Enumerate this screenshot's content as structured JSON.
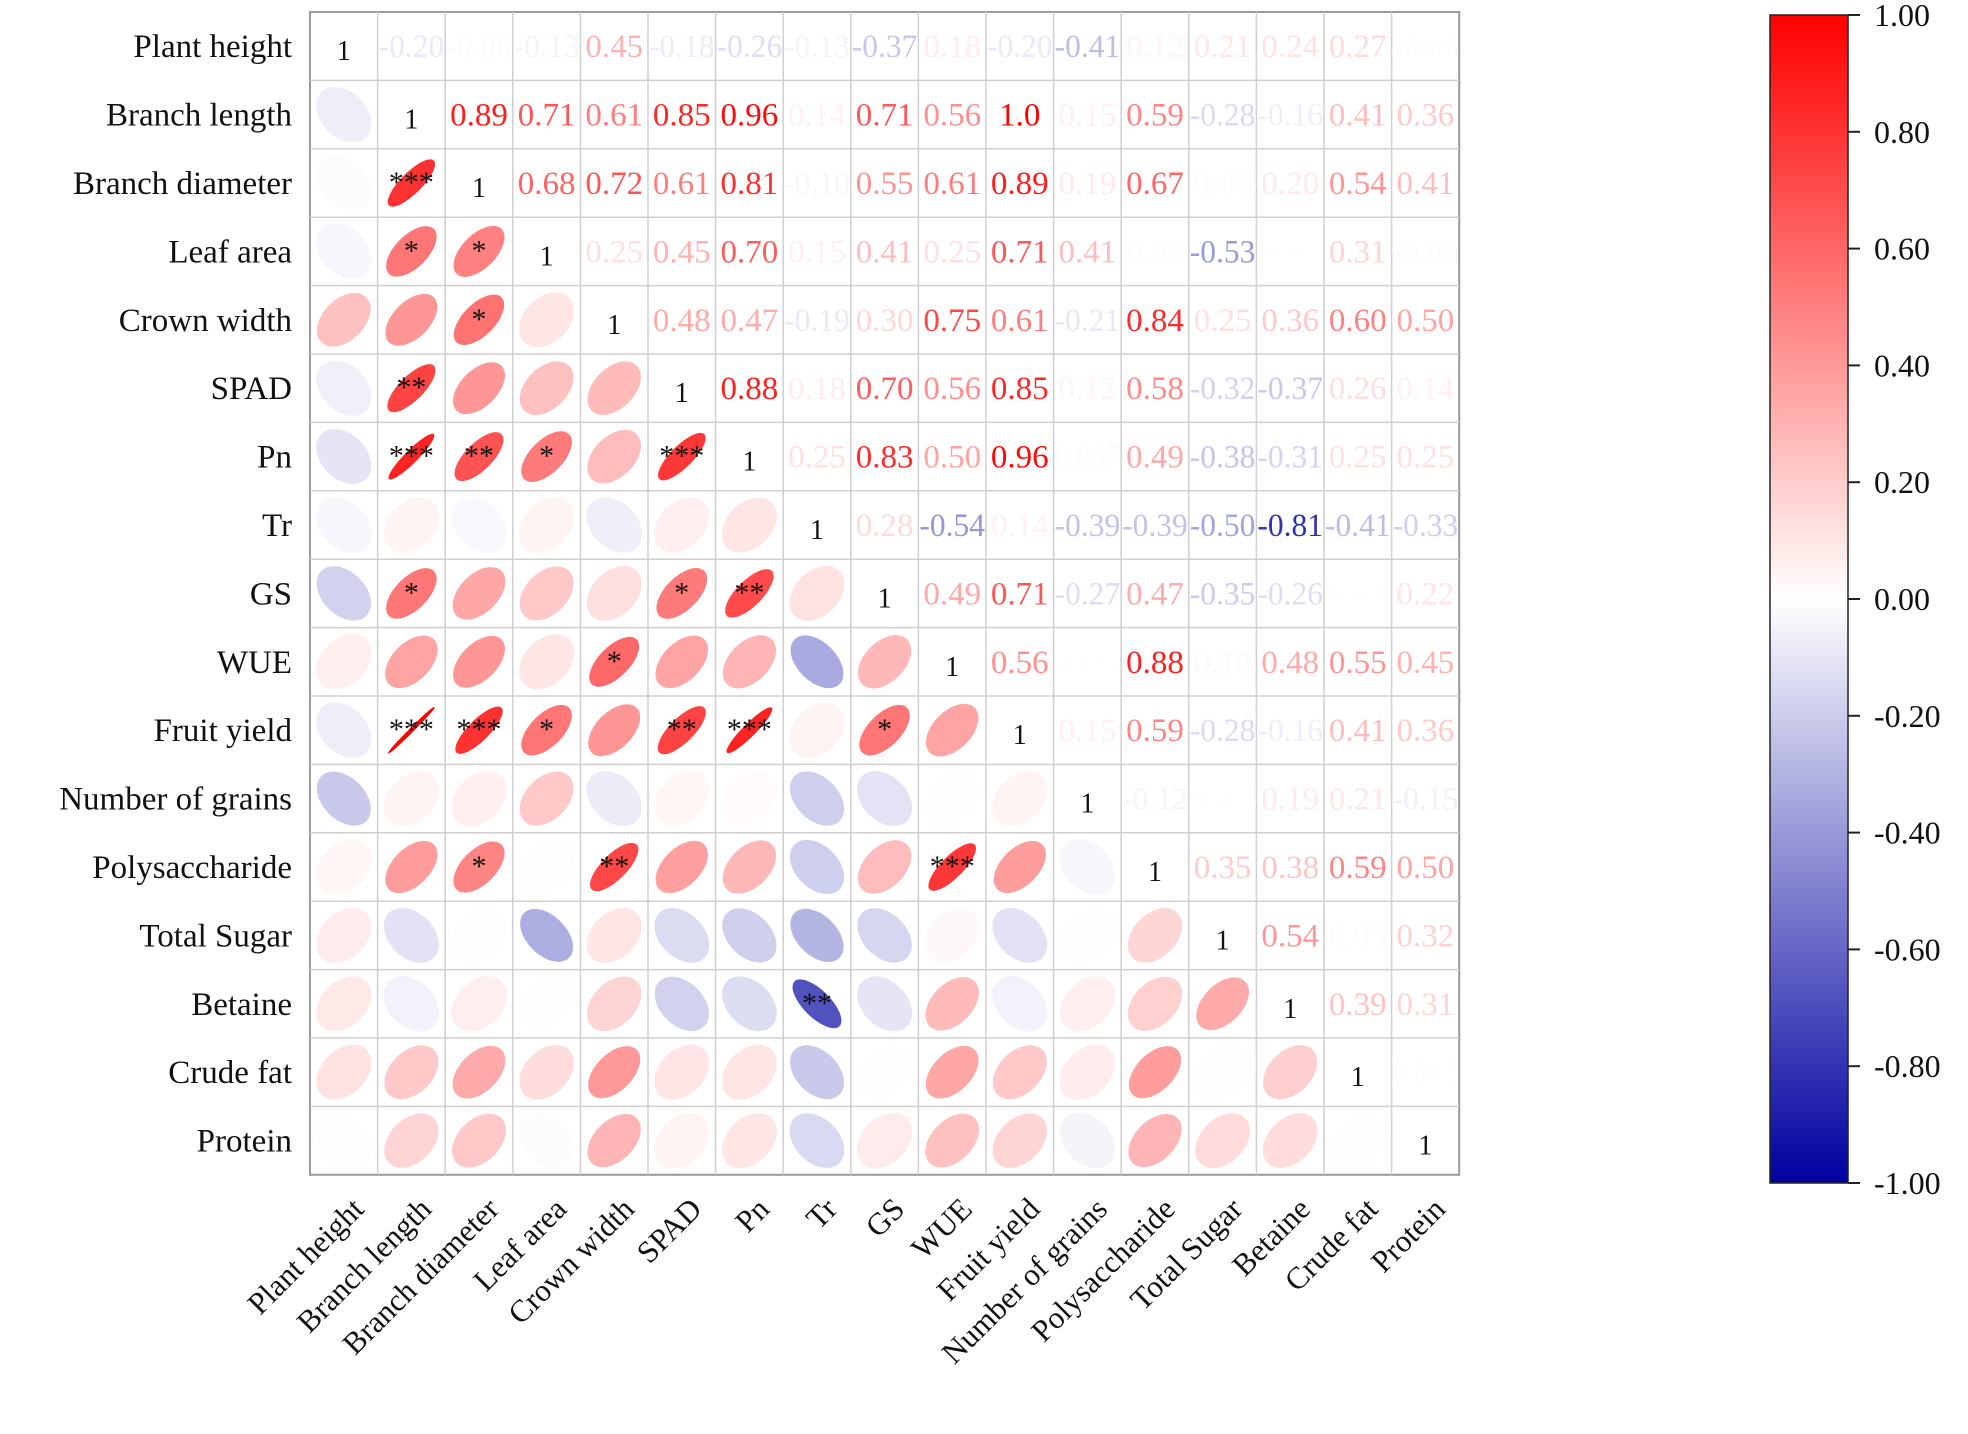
{
  "chart_data": {
    "type": "heatmap",
    "variables": [
      "Plant height",
      "Branch length",
      "Branch diameter",
      "Leaf area",
      "Crown width",
      "SPAD",
      "Pn",
      "Tr",
      "GS",
      "WUE",
      "Fruit yield",
      "Number of grains",
      "Polysaccharide",
      "Total Sugar",
      "Betaine",
      "Crude fat",
      "Protein"
    ],
    "matrix": [
      [
        1,
        -0.2,
        -0.06,
        -0.13,
        0.45,
        -0.18,
        -0.26,
        -0.13,
        -0.37,
        0.18,
        -0.2,
        -0.41,
        0.12,
        0.21,
        0.24,
        0.27,
        -0.03
      ],
      [
        -0.2,
        1,
        0.89,
        0.71,
        0.61,
        0.85,
        0.96,
        0.14,
        0.71,
        0.56,
        1.0,
        0.15,
        0.59,
        -0.28,
        -0.16,
        0.41,
        0.36
      ],
      [
        -0.06,
        0.89,
        1,
        0.68,
        0.72,
        0.61,
        0.81,
        -0.1,
        0.55,
        0.61,
        0.89,
        0.19,
        0.67,
        0.05,
        0.2,
        0.54,
        0.41
      ],
      [
        -0.13,
        0.71,
        0.68,
        1,
        0.25,
        0.45,
        0.7,
        0.15,
        0.41,
        0.25,
        0.71,
        0.41,
        0.05,
        -0.53,
        0.03,
        0.31,
        -0.05
      ],
      [
        0.45,
        0.61,
        0.72,
        0.25,
        1,
        0.48,
        0.47,
        -0.19,
        0.3,
        0.75,
        0.61,
        -0.21,
        0.84,
        0.25,
        0.36,
        0.6,
        0.5
      ],
      [
        -0.18,
        0.85,
        0.61,
        0.45,
        0.48,
        1,
        0.88,
        0.18,
        0.7,
        0.56,
        0.85,
        0.12,
        0.58,
        -0.32,
        -0.37,
        0.26,
        0.14
      ],
      [
        -0.26,
        0.96,
        0.81,
        0.7,
        0.47,
        0.88,
        1,
        0.25,
        0.83,
        0.5,
        0.96,
        0.067,
        0.49,
        -0.38,
        -0.31,
        0.25,
        0.25
      ],
      [
        -0.13,
        0.14,
        -0.1,
        0.15,
        -0.19,
        0.18,
        0.25,
        1,
        0.28,
        -0.54,
        0.14,
        -0.39,
        -0.39,
        -0.5,
        -0.81,
        -0.41,
        -0.33
      ],
      [
        -0.37,
        0.71,
        0.55,
        0.41,
        0.3,
        0.7,
        0.83,
        0.28,
        1,
        0.49,
        0.71,
        -0.27,
        0.47,
        -0.35,
        -0.26,
        0.01,
        0.22
      ],
      [
        0.18,
        0.56,
        0.61,
        0.25,
        0.75,
        0.56,
        0.5,
        -0.54,
        0.49,
        1,
        0.56,
        0.03,
        0.88,
        0.1,
        0.48,
        0.55,
        0.45
      ],
      [
        -0.2,
        1.0,
        0.89,
        0.71,
        0.61,
        0.85,
        0.96,
        0.14,
        0.71,
        0.56,
        1,
        0.15,
        0.59,
        -0.28,
        -0.16,
        0.41,
        0.36
      ],
      [
        -0.41,
        0.15,
        0.19,
        0.41,
        -0.21,
        0.12,
        0.067,
        -0.39,
        -0.27,
        0.03,
        0.15,
        1,
        -0.12,
        0.03,
        0.19,
        0.21,
        -0.15
      ],
      [
        0.12,
        0.59,
        0.67,
        0.05,
        0.84,
        0.58,
        0.49,
        -0.39,
        0.47,
        0.88,
        0.59,
        -0.12,
        1,
        0.35,
        0.38,
        0.59,
        0.5
      ],
      [
        0.21,
        -0.28,
        0.05,
        -0.53,
        0.25,
        -0.32,
        -0.38,
        -0.5,
        -0.35,
        0.1,
        -0.28,
        0.03,
        0.35,
        1,
        0.54,
        0.05,
        0.32
      ],
      [
        0.24,
        -0.16,
        0.2,
        0.03,
        0.36,
        -0.37,
        -0.31,
        -0.81,
        -0.26,
        0.48,
        -0.16,
        0.19,
        0.38,
        0.54,
        1,
        0.39,
        0.31
      ],
      [
        0.27,
        0.41,
        0.54,
        0.31,
        0.6,
        0.26,
        0.25,
        -0.41,
        0.01,
        0.55,
        0.41,
        0.21,
        0.59,
        0.05,
        0.39,
        1,
        0.042
      ],
      [
        -0.03,
        0.36,
        0.41,
        -0.05,
        0.5,
        0.14,
        0.25,
        -0.33,
        0.22,
        0.45,
        0.36,
        -0.15,
        0.5,
        0.32,
        0.31,
        0.042,
        1
      ]
    ],
    "upper_labels": [
      [
        "1",
        "-0.20",
        "-0.06",
        "-0.13",
        "0.45",
        "-0.18",
        "-0.26",
        "-0.13",
        "-0.37",
        "0.18",
        "-0.20",
        "-0.41",
        "0.12",
        "0.21",
        "0.24",
        "0.27",
        "-0.03"
      ],
      [
        "",
        "1",
        "0.89",
        "0.71",
        "0.61",
        "0.85",
        "0.96",
        "0.14",
        "0.71",
        "0.56",
        "1.0",
        "0.15",
        "0.59",
        "-0.28",
        "-0.16",
        "0.41",
        "0.36"
      ],
      [
        "",
        "",
        "1",
        "0.68",
        "0.72",
        "0.61",
        "0.81",
        "-0.10",
        "0.55",
        "0.61",
        "0.89",
        "0.19",
        "0.67",
        "0.05",
        "0.20",
        "0.54",
        "0.41"
      ],
      [
        "",
        "",
        "",
        "1",
        "0.25",
        "0.45",
        "0.70",
        "0.15",
        "0.41",
        "0.25",
        "0.71",
        "0.41",
        "0.05",
        "-0.53",
        "0.03",
        "0.31",
        "-0.05"
      ],
      [
        "",
        "",
        "",
        "",
        "1",
        "0.48",
        "0.47",
        "-0.19",
        "0.30",
        "0.75",
        "0.61",
        "-0.21",
        "0.84",
        "0.25",
        "0.36",
        "0.60",
        "0.50"
      ],
      [
        "",
        "",
        "",
        "",
        "",
        "1",
        "0.88",
        "0.18",
        "0.70",
        "0.56",
        "0.85",
        "0.12",
        "0.58",
        "-0.32",
        "-0.37",
        "0.26",
        "0.14"
      ],
      [
        "",
        "",
        "",
        "",
        "",
        "",
        "1",
        "0.25",
        "0.83",
        "0.50",
        "0.96",
        "0.067",
        "0.49",
        "-0.38",
        "-0.31",
        "0.25",
        "0.25"
      ],
      [
        "",
        "",
        "",
        "",
        "",
        "",
        "",
        "1",
        "0.28",
        "-0.54",
        "0.14",
        "-0.39",
        "-0.39",
        "-0.50",
        "-0.81",
        "-0.41",
        "-0.33"
      ],
      [
        "",
        "",
        "",
        "",
        "",
        "",
        "",
        "",
        "1",
        "0.49",
        "0.71",
        "-0.27",
        "0.47",
        "-0.35",
        "-0.26",
        "0.01",
        "0.22"
      ],
      [
        "",
        "",
        "",
        "",
        "",
        "",
        "",
        "",
        "",
        "1",
        "0.56",
        "0.03",
        "0.88",
        "0.10",
        "0.48",
        "0.55",
        "0.45"
      ],
      [
        "",
        "",
        "",
        "",
        "",
        "",
        "",
        "",
        "",
        "",
        "1",
        "0.15",
        "0.59",
        "-0.28",
        "-0.16",
        "0.41",
        "0.36"
      ],
      [
        "",
        "",
        "",
        "",
        "",
        "",
        "",
        "",
        "",
        "",
        "",
        "1",
        "-0.12",
        "0.03",
        "0.19",
        "0.21",
        "-0.15"
      ],
      [
        "",
        "",
        "",
        "",
        "",
        "",
        "",
        "",
        "",
        "",
        "",
        "",
        "1",
        "0.35",
        "0.38",
        "0.59",
        "0.50"
      ],
      [
        "",
        "",
        "",
        "",
        "",
        "",
        "",
        "",
        "",
        "",
        "",
        "",
        "",
        "1",
        "0.54",
        "0.05",
        "0.32"
      ],
      [
        "",
        "",
        "",
        "",
        "",
        "",
        "",
        "",
        "",
        "",
        "",
        "",
        "",
        "",
        "1",
        "0.39",
        "0.31"
      ],
      [
        "",
        "",
        "",
        "",
        "",
        "",
        "",
        "",
        "",
        "",
        "",
        "",
        "",
        "",
        "",
        "1",
        "0.042"
      ],
      [
        "",
        "",
        "",
        "",
        "",
        "",
        "",
        "",
        "",
        "",
        "",
        "",
        "",
        "",
        "",
        "",
        "1"
      ]
    ],
    "significance": [
      [
        "",
        "",
        "",
        "",
        "",
        "",
        "",
        "",
        "",
        "",
        "",
        "",
        "",
        "",
        "",
        "",
        ""
      ],
      [
        "",
        "",
        "",
        "",
        "",
        "",
        "",
        "",
        "",
        "",
        "",
        "",
        "",
        "",
        "",
        "",
        ""
      ],
      [
        "",
        "***",
        "",
        "",
        "",
        "",
        "",
        "",
        "",
        "",
        "",
        "",
        "",
        "",
        "",
        "",
        ""
      ],
      [
        "",
        "*",
        "*",
        "",
        "",
        "",
        "",
        "",
        "",
        "",
        "",
        "",
        "",
        "",
        "",
        "",
        ""
      ],
      [
        "",
        "",
        "*",
        "",
        "",
        "",
        "",
        "",
        "",
        "",
        "",
        "",
        "",
        "",
        "",
        "",
        ""
      ],
      [
        "",
        "**",
        "",
        "",
        "",
        "",
        "",
        "",
        "",
        "",
        "",
        "",
        "",
        "",
        "",
        "",
        ""
      ],
      [
        "",
        "***",
        "**",
        "*",
        "",
        "***",
        "",
        "",
        "",
        "",
        "",
        "",
        "",
        "",
        "",
        "",
        ""
      ],
      [
        "",
        "",
        "",
        "",
        "",
        "",
        "",
        "",
        "",
        "",
        "",
        "",
        "",
        "",
        "",
        "",
        ""
      ],
      [
        "",
        "*",
        "",
        "",
        "",
        "*",
        "**",
        "",
        "",
        "",
        "",
        "",
        "",
        "",
        "",
        "",
        ""
      ],
      [
        "",
        "",
        "",
        "",
        "*",
        "",
        "",
        "",
        "",
        "",
        "",
        "",
        "",
        "",
        "",
        "",
        ""
      ],
      [
        "",
        "***",
        "***",
        "*",
        "",
        "**",
        "***",
        "",
        "*",
        "",
        "",
        "",
        "",
        "",
        "",
        "",
        ""
      ],
      [
        "",
        "",
        "",
        "",
        "",
        "",
        "",
        "",
        "",
        "",
        "",
        "",
        "",
        "",
        "",
        "",
        ""
      ],
      [
        "",
        "",
        "*",
        "",
        "**",
        "",
        "",
        "",
        "",
        "***",
        "",
        "",
        "",
        "",
        "",
        "",
        ""
      ],
      [
        "",
        "",
        "",
        "",
        "",
        "",
        "",
        "",
        "",
        "",
        "",
        "",
        "",
        "",
        "",
        "",
        ""
      ],
      [
        "",
        "",
        "",
        "",
        "",
        "",
        "",
        "**",
        "",
        "",
        "",
        "",
        "",
        "",
        "",
        "",
        ""
      ],
      [
        "",
        "",
        "",
        "",
        "",
        "",
        "",
        "",
        "",
        "",
        "",
        "",
        "",
        "",
        "",
        "",
        ""
      ],
      [
        "",
        "",
        "",
        "",
        "",
        "",
        "",
        "",
        "",
        "",
        "",
        "",
        "",
        "",
        "",
        "",
        ""
      ]
    ],
    "colorbar": {
      "min": -1.0,
      "max": 1.0,
      "ticks": [
        "1.00",
        "0.80",
        "0.60",
        "0.40",
        "0.20",
        "0.00",
        "-0.20",
        "-0.40",
        "-0.60",
        "-0.80",
        "-1.00"
      ],
      "tick_values": [
        1.0,
        0.8,
        0.6,
        0.4,
        0.2,
        0.0,
        -0.2,
        -0.4,
        -0.6,
        -0.8,
        -1.0
      ],
      "colors": {
        "negative": "#0000a0",
        "zero": "#ffffff",
        "positive": "#ff0000"
      }
    },
    "legend": "right",
    "grid": true
  }
}
